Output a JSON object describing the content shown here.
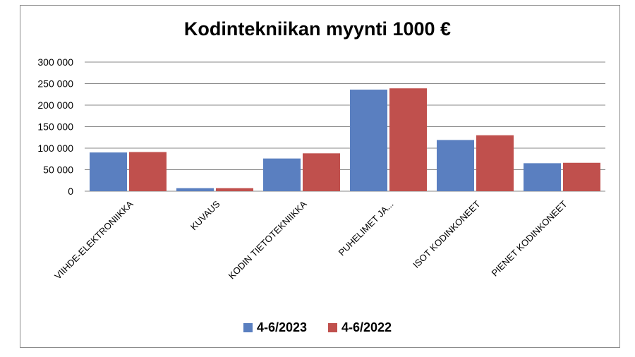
{
  "chart_data": {
    "type": "bar",
    "title": "Kodintekniikan myynti 1000 €",
    "categories": [
      "VIIHDE-ELEKTRONIIKKA",
      "KUVAUS",
      "KODIN TIETOTEKNIIKKA",
      "PUHELIMET JA...",
      "ISOT KODINKONEET",
      "PIENET KODINKONEET"
    ],
    "series": [
      {
        "name": "4-6/2023",
        "color": "#5a7fc0",
        "values": [
          90000,
          7000,
          76000,
          236000,
          119000,
          65000
        ]
      },
      {
        "name": "4-6/2022",
        "color": "#c0504d",
        "values": [
          91000,
          7000,
          88000,
          239000,
          130000,
          66000
        ]
      }
    ],
    "ylim": [
      0,
      300000
    ],
    "yticks": [
      0,
      50000,
      100000,
      150000,
      200000,
      250000,
      300000
    ],
    "ytick_labels": [
      "0",
      "50 000",
      "100 000",
      "150 000",
      "200 000",
      "250 000",
      "300 000"
    ],
    "grid": true,
    "legend_position": "bottom",
    "xlabel": "",
    "ylabel": ""
  }
}
